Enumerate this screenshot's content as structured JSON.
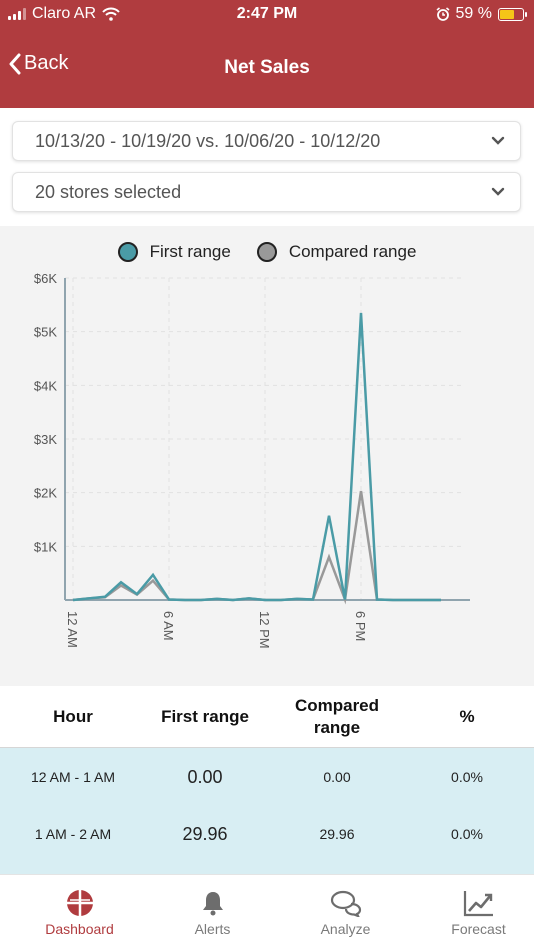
{
  "status_bar": {
    "carrier": "Claro AR",
    "time": "2:47 PM",
    "battery": "59 %"
  },
  "nav": {
    "back_label": "Back",
    "title": "Net Sales"
  },
  "filters": {
    "date_range": "10/13/20 - 10/19/20 vs. 10/06/20 - 10/12/20",
    "stores": "20 stores selected"
  },
  "colors": {
    "accent": "#b03c3f",
    "first_range": "#4a9ba6",
    "compared_range": "#999999",
    "table_row_bg": "#d8eef3"
  },
  "chart_data": {
    "type": "line",
    "legend": [
      "First range",
      "Compared range"
    ],
    "x_tick_labels": [
      "12 AM",
      "6 AM",
      "12 PM",
      "6 PM"
    ],
    "x_tick_hours": [
      0,
      6,
      12,
      18
    ],
    "y_tick_labels": [
      "$1K",
      "$2K",
      "$3K",
      "$4K",
      "$5K",
      "$6K"
    ],
    "y_tick_values": [
      1000,
      2000,
      3000,
      4000,
      5000,
      6000
    ],
    "ylim": [
      0,
      6000
    ],
    "xlim": [
      0,
      25
    ],
    "series": [
      {
        "name": "First range",
        "color": "#4a9ba6",
        "x": [
          0,
          1,
          2,
          3,
          4,
          5,
          6,
          7,
          8,
          9,
          10,
          11,
          12,
          13,
          14,
          15,
          16,
          17,
          18,
          19,
          20,
          21,
          22,
          23
        ],
        "values": [
          0,
          29.96,
          60,
          330,
          110,
          470,
          10,
          0,
          0,
          20,
          0,
          30,
          0,
          0,
          20,
          10,
          1570,
          10,
          5350,
          10,
          0,
          0,
          0,
          0
        ]
      },
      {
        "name": "Compared range",
        "color": "#999999",
        "x": [
          0,
          1,
          2,
          3,
          4,
          5,
          6,
          7,
          8,
          9,
          10,
          11,
          12,
          13,
          14,
          15,
          16,
          17,
          18,
          19,
          20,
          21,
          22,
          23
        ],
        "values": [
          0,
          29.96,
          50,
          270,
          100,
          360,
          10,
          0,
          0,
          20,
          0,
          30,
          0,
          0,
          20,
          10,
          800,
          10,
          2030,
          10,
          0,
          0,
          0,
          0
        ]
      }
    ]
  },
  "table": {
    "headers": {
      "hour": "Hour",
      "first": "First range",
      "compared": "Compared\nrange",
      "percent": "%"
    },
    "rows": [
      {
        "hour": "12 AM - 1 AM",
        "first": "0.00",
        "compared": "0.00",
        "percent": "0.0%"
      },
      {
        "hour": "1 AM - 2 AM",
        "first": "29.96",
        "compared": "29.96",
        "percent": "0.0%"
      }
    ]
  },
  "tabs": [
    {
      "label": "Dashboard",
      "icon": "dashboard-icon"
    },
    {
      "label": "Alerts",
      "icon": "bell-icon"
    },
    {
      "label": "Analyze",
      "icon": "chat-bubbles-icon"
    },
    {
      "label": "Forecast",
      "icon": "trend-chart-icon"
    }
  ]
}
